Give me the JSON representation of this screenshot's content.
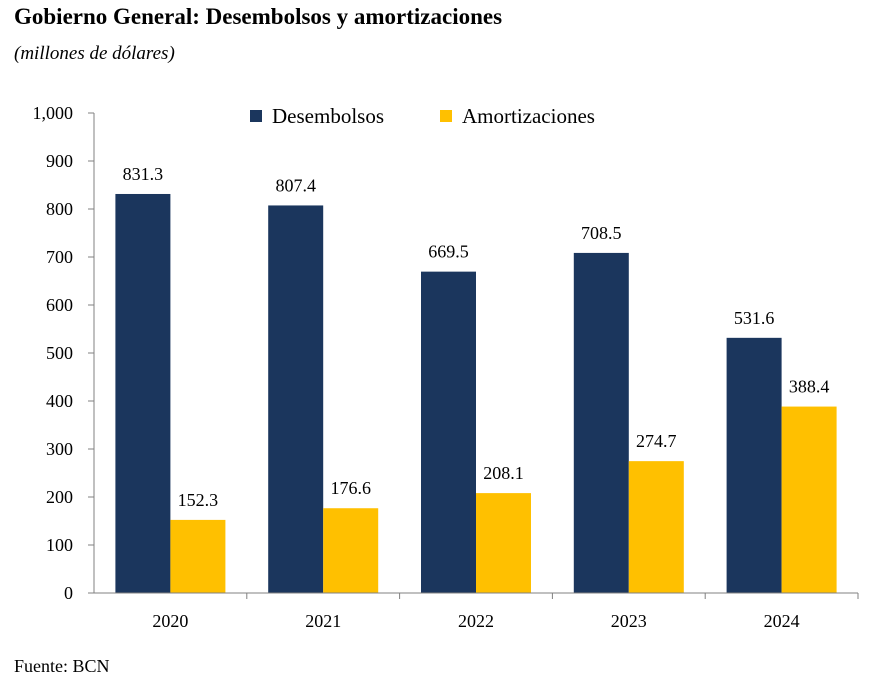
{
  "header": {
    "title": "Gobierno General: Desembolsos y amortizaciones",
    "subtitle": "(millones de dólares)"
  },
  "footer": {
    "source": "Fuente: BCN"
  },
  "chart_data": {
    "type": "bar",
    "categories": [
      "2020",
      "2021",
      "2022",
      "2023",
      "2024"
    ],
    "series": [
      {
        "name": "Desembolsos",
        "color": "#1b365d",
        "values": [
          831.3,
          807.4,
          669.5,
          708.5,
          531.6
        ]
      },
      {
        "name": "Amortizaciones",
        "color": "#ffc000",
        "values": [
          152.3,
          176.6,
          208.1,
          274.7,
          388.4
        ]
      }
    ],
    "ylim": [
      0,
      1000
    ],
    "yticks": [
      "0",
      "100",
      "200",
      "300",
      "400",
      "500",
      "600",
      "700",
      "800",
      "900",
      "1,000"
    ],
    "grid": false,
    "legend_position": "top",
    "title": "",
    "xlabel": "",
    "ylabel": ""
  }
}
